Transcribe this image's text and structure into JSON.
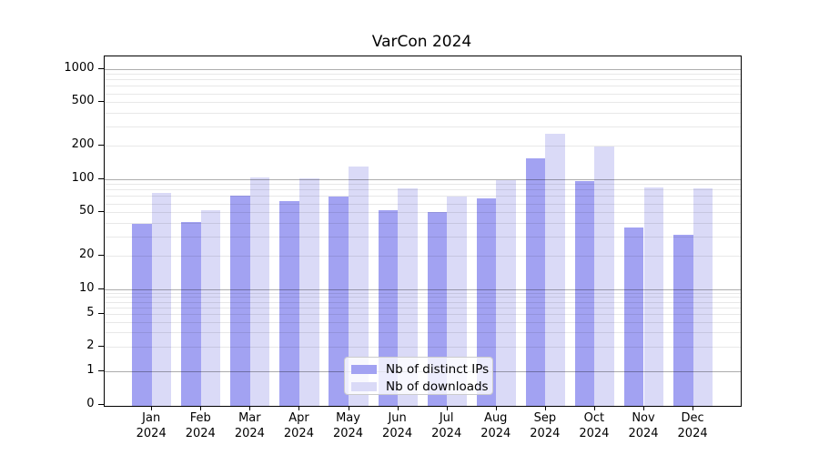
{
  "figure": {
    "title": "VarCon 2024"
  },
  "legend": {
    "items": [
      {
        "label": "Nb of distinct IPs",
        "color": "#a2a2f2"
      },
      {
        "label": "Nb of downloads",
        "color": "#dadaf7"
      }
    ]
  },
  "chart_data": {
    "type": "bar",
    "title": "VarCon 2024",
    "categories": [
      "Jan",
      "Feb",
      "Mar",
      "Apr",
      "May",
      "Jun",
      "Jul",
      "Aug",
      "Sep",
      "Oct",
      "Nov",
      "Dec"
    ],
    "year": "2024",
    "series": [
      {
        "name": "Nb of distinct IPs",
        "color": "#a2a2f2",
        "values": [
          39,
          41,
          71,
          63,
          69,
          52,
          50,
          67,
          155,
          95,
          36,
          31
        ]
      },
      {
        "name": "Nb of downloads",
        "color": "#dadaf7",
        "values": [
          75,
          52,
          103,
          101,
          129,
          82,
          69,
          98,
          260,
          199,
          84,
          82
        ]
      }
    ],
    "xlabel": "",
    "ylabel": "",
    "yscale": "symlog",
    "ylim": [
      0,
      1300
    ],
    "ytick_labels": [
      "0",
      "1",
      "2",
      "5",
      "10",
      "20",
      "50",
      "100",
      "200",
      "500",
      "1000"
    ],
    "ytick_values": [
      0,
      1,
      2,
      5,
      10,
      20,
      50,
      100,
      200,
      500,
      1000
    ],
    "grid": "horizontal, major and minor, drawn above bars",
    "legend_position": "lower center (inside axes)"
  }
}
